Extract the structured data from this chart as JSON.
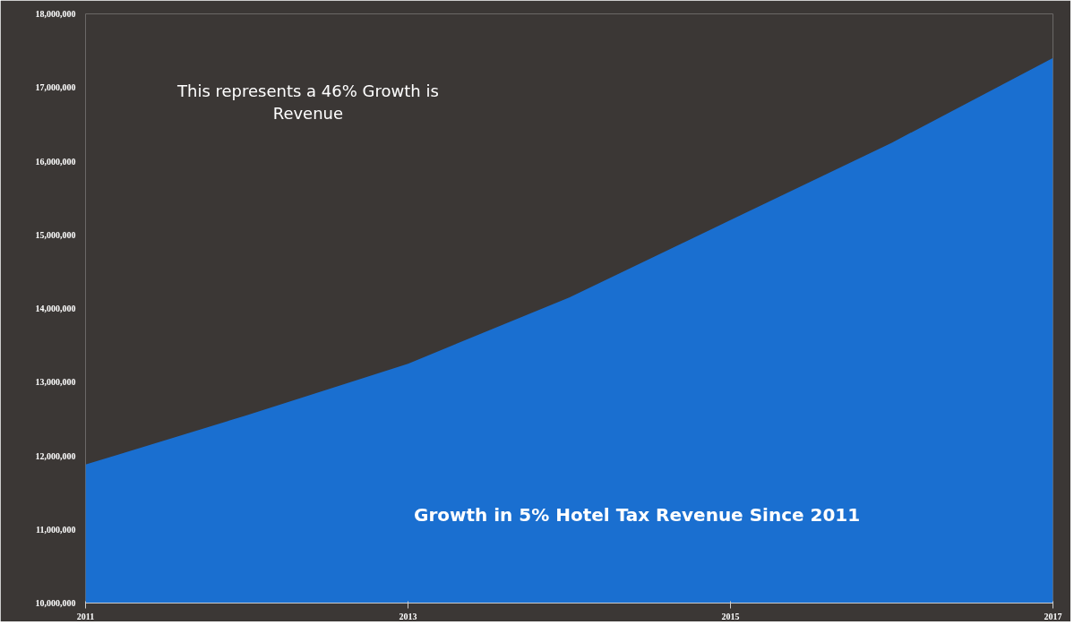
{
  "chart_data": {
    "type": "area",
    "x": [
      2011,
      2012,
      2013,
      2014,
      2015,
      2016,
      2017
    ],
    "series": [
      {
        "color": "#1a6fd0",
        "values": [
          11880000,
          12550000,
          13250000,
          14150000,
          15200000,
          16250000,
          17400000
        ]
      }
    ],
    "xlim": [
      2011,
      2017
    ],
    "xticks": [
      2011,
      2013,
      2015,
      2017
    ],
    "ylim": [
      10000000,
      18000000
    ],
    "yticks": [
      {
        "value": 10000000,
        "label": "10,000,000"
      },
      {
        "value": 11000000,
        "label": "11,000,000"
      },
      {
        "value": 12000000,
        "label": "12,000,000"
      },
      {
        "value": 13000000,
        "label": "13,000,000"
      },
      {
        "value": 14000000,
        "label": "14,000,000"
      },
      {
        "value": 15000000,
        "label": "15,000,000"
      },
      {
        "value": 16000000,
        "label": "16,000,000"
      },
      {
        "value": 17000000,
        "label": "17,000,000"
      },
      {
        "value": 18000000,
        "label": "18,000,000"
      }
    ],
    "annotations": [
      "This represents a 46% Growth is\nRevenue",
      "Growth in 5% Hotel Tax Revenue Since 2011"
    ]
  }
}
